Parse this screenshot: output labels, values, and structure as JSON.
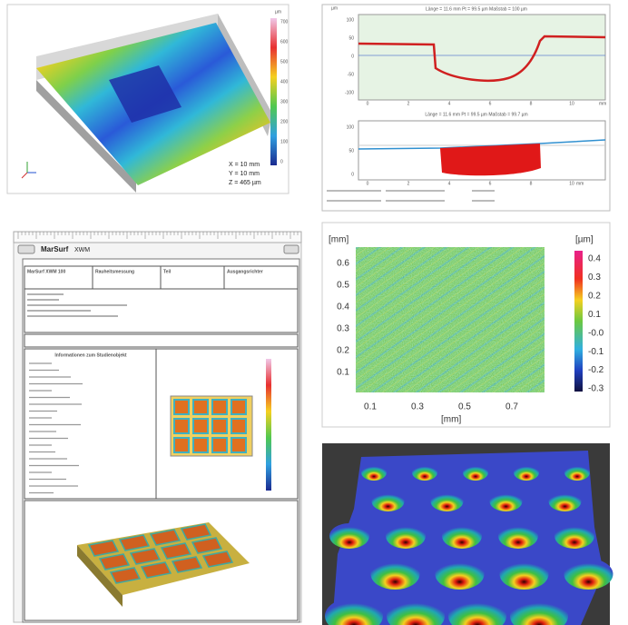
{
  "surface_3d": {
    "readout": [
      "X = 10 mm",
      "Y = 10 mm",
      "Z = 465 µm"
    ],
    "scale_unit": "µm",
    "scale_ticks": [
      "700",
      "600",
      "500",
      "400",
      "300",
      "200",
      "100",
      "0"
    ]
  },
  "profile": {
    "top_title": "Länge = 11.6 mm  Pt = 99.5 µm  Maßstab = 100 µm",
    "bottom_title": "Länge = 11.6 mm  Pt = 99.5 µm  Maßstab = 99.7 µm",
    "unit": "µm",
    "top_yticks": [
      "100",
      "50",
      "0",
      "-50",
      "-100"
    ],
    "bottom_yticks": [
      "100",
      "50",
      "0"
    ],
    "xticks": [
      "0",
      "2",
      "4",
      "6",
      "8",
      "10"
    ],
    "x_unit": "mm"
  },
  "report": {
    "app_title": "MarSurf",
    "app_subtitle": "XWM",
    "header_cells": [
      "MarSurf XWM 100",
      "Rauheitsmessung",
      "Teil",
      "Ausgangsrichter"
    ],
    "section_title": "Informationen zum Studienobjekt"
  },
  "heatmap": {
    "y_unit": "[mm]",
    "x_unit": "[mm]",
    "scale_unit": "[µm]",
    "yticks": [
      "0.6",
      "0.5",
      "0.4",
      "0.3",
      "0.2",
      "0.1"
    ],
    "xticks": [
      "0.1",
      "0.3",
      "0.5",
      "0.7"
    ],
    "scale_ticks": [
      "0.4",
      "0.3",
      "0.2",
      "0.1",
      "-0.0",
      "-0.1",
      "-0.2",
      "-0.3"
    ]
  }
}
